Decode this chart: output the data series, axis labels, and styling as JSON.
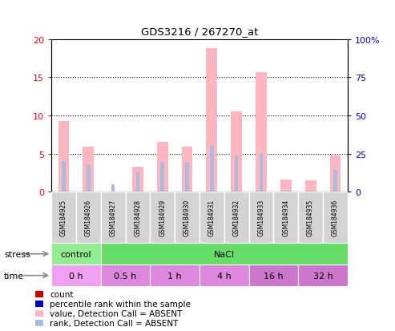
{
  "title": "GDS3216 / 267270_at",
  "samples": [
    "GSM184925",
    "GSM184926",
    "GSM184927",
    "GSM184928",
    "GSM184929",
    "GSM184930",
    "GSM184931",
    "GSM184932",
    "GSM184933",
    "GSM184934",
    "GSM184935",
    "GSM184936"
  ],
  "pink_values": [
    9.3,
    5.9,
    0.0,
    3.3,
    6.5,
    5.9,
    18.8,
    10.5,
    15.7,
    1.6,
    1.5,
    4.7
  ],
  "blue_values": [
    20.0,
    18.0,
    5.0,
    13.0,
    19.5,
    19.0,
    30.0,
    23.5,
    25.5,
    0.0,
    0.0,
    14.5
  ],
  "ylim": [
    0,
    20
  ],
  "yticks_left": [
    0,
    5,
    10,
    15,
    20
  ],
  "yticks_right_vals": [
    0,
    25,
    50,
    75,
    100
  ],
  "yticks_right_labels": [
    "0",
    "25",
    "50",
    "75",
    "100%"
  ],
  "stress_groups": [
    {
      "label": "control",
      "color": "#90EE90",
      "col_span": [
        0,
        2
      ]
    },
    {
      "label": "NaCl",
      "color": "#66DD66",
      "col_span": [
        2,
        12
      ]
    }
  ],
  "time_groups": [
    {
      "label": "0 h",
      "color": "#F0A0F0",
      "col_span": [
        0,
        2
      ]
    },
    {
      "label": "0.5 h",
      "color": "#DD88DD",
      "col_span": [
        2,
        4
      ]
    },
    {
      "label": "1 h",
      "color": "#DD88DD",
      "col_span": [
        4,
        6
      ]
    },
    {
      "label": "4 h",
      "color": "#DD88DD",
      "col_span": [
        6,
        8
      ]
    },
    {
      "label": "16 h",
      "color": "#CC77CC",
      "col_span": [
        8,
        10
      ]
    },
    {
      "label": "32 h",
      "color": "#CC77CC",
      "col_span": [
        10,
        12
      ]
    }
  ],
  "legend_colors": [
    "#CC0000",
    "#0000CC",
    "#FFB6C1",
    "#AABBDD"
  ],
  "legend_labels": [
    "count",
    "percentile rank within the sample",
    "value, Detection Call = ABSENT",
    "rank, Detection Call = ABSENT"
  ],
  "pink_color": "#FFB6C1",
  "blue_color": "#AABBDD",
  "bg_color": "#FFFFFF"
}
